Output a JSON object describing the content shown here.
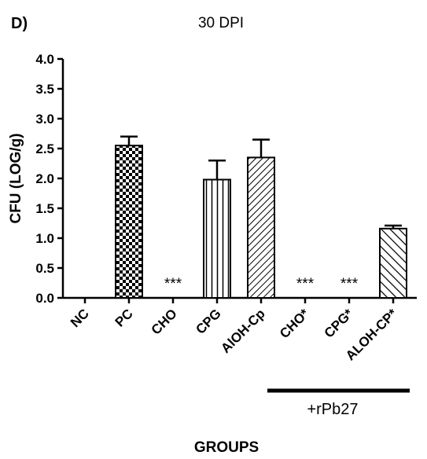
{
  "panel_label": "D)",
  "title": "30 DPI",
  "group_label": "+rPb27",
  "chart_data": {
    "type": "bar",
    "title": "30 DPI",
    "xlabel": "GROUPS",
    "ylabel": "CFU (LOG/g)",
    "ylim": [
      0,
      4
    ],
    "yticks": [
      "0.0",
      "0.5",
      "1.0",
      "1.5",
      "2.0",
      "2.5",
      "3.0",
      "3.5",
      "4.0"
    ],
    "categories": [
      "NC",
      "PC",
      "CHO",
      "CPG",
      "AlOH-Cp",
      "CHO*",
      "CPG*",
      "ALOH-CP*"
    ],
    "values": [
      0,
      2.55,
      0,
      1.98,
      2.35,
      0,
      0,
      1.16
    ],
    "errors": [
      0,
      0.15,
      0,
      0.32,
      0.3,
      0,
      0,
      0.05
    ],
    "annotations": [
      "",
      "",
      "***",
      "",
      "",
      "***",
      "***",
      ""
    ],
    "patterns": [
      "none",
      "checker",
      "none",
      "vertical-stripes",
      "diagonal-up",
      "none",
      "none",
      "diagonal-down"
    ],
    "grid": false,
    "legend": "none"
  }
}
